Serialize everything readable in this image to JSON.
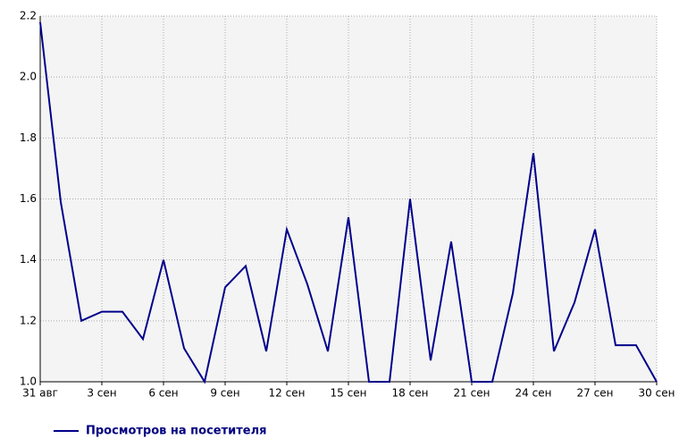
{
  "chart_data": {
    "type": "line",
    "categories": [
      "31 авг",
      null,
      null,
      "3 сен",
      null,
      null,
      "6 сен",
      null,
      null,
      "9 сен",
      null,
      null,
      "12 сен",
      null,
      null,
      "15 сен",
      null,
      null,
      "18 сен",
      null,
      null,
      "21 сен",
      null,
      null,
      "24 сен",
      null,
      null,
      "27 сен",
      null,
      null,
      "30 сен"
    ],
    "series": [
      {
        "name": "Просмотров на посетителя",
        "color": "#00008b",
        "values": [
          2.18,
          1.59,
          1.2,
          1.23,
          1.23,
          1.14,
          1.4,
          1.11,
          1.0,
          1.31,
          1.38,
          1.1,
          1.5,
          1.32,
          1.1,
          1.54,
          1.0,
          1.0,
          1.6,
          1.07,
          1.46,
          1.0,
          1.0,
          1.29,
          1.75,
          1.1,
          1.26,
          1.5,
          1.12,
          1.12,
          1.0
        ]
      }
    ],
    "ylim": [
      1.0,
      2.2
    ],
    "yticks": [
      {
        "value": 1.0,
        "label": "1.0"
      },
      1.2,
      1.4,
      1.6,
      1.8,
      {
        "value": 2.0,
        "label": "2.0"
      },
      2.2
    ],
    "grid": true,
    "legend": "bottom"
  }
}
